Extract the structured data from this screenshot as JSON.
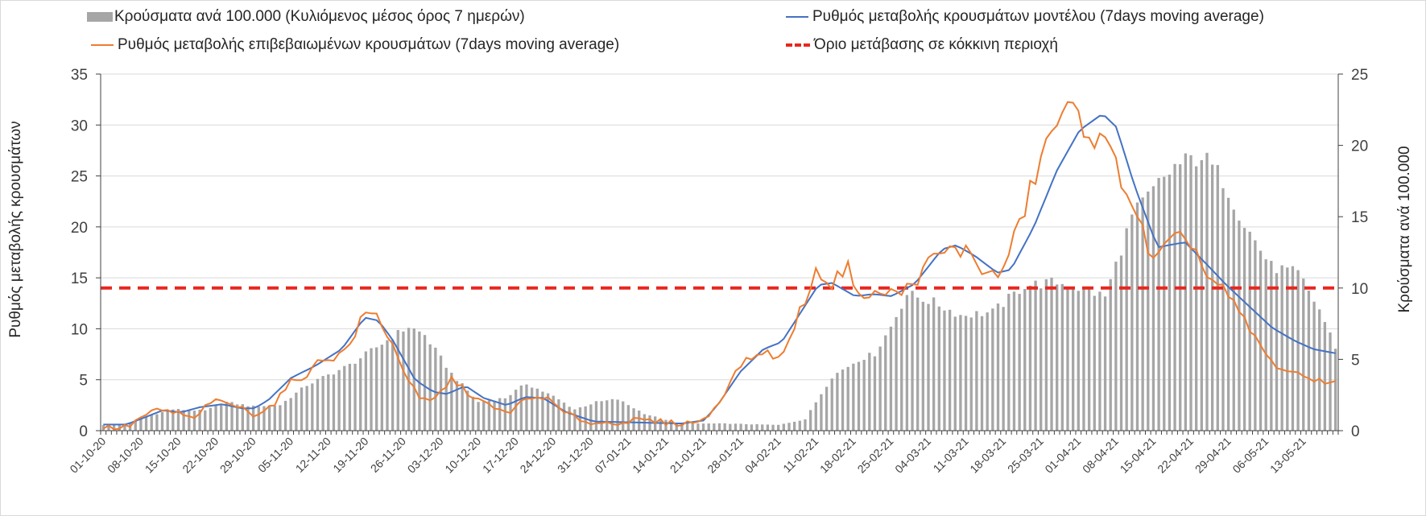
{
  "chart_data": {
    "type": "bar+line",
    "title": "",
    "legend": {
      "bars": "Κρούσματα ανά 100.000 (Κυλιόμενος μέσος όρος 7 ημερών)",
      "model": "Ρυθμός μεταβολής κρουσμάτων μοντέλου (7days moving average)",
      "confirmed": "Ρυθμός μεταβολής επιβεβαιωμένων κρουσμάτων (7days moving average)",
      "threshold": "Όριο μετάβασης σε κόκκινη περιοχή"
    },
    "ylabel_left": "Ρυθμός μεταβολής κρουσμάτων",
    "ylabel_right": "Κρούσματα ανά 100.000",
    "ylim_left": [
      0,
      35
    ],
    "yticks_left": [
      "0",
      "5",
      "10",
      "15",
      "20",
      "25",
      "30",
      "35"
    ],
    "ylim_right": [
      0,
      25
    ],
    "yticks_right": [
      "0",
      "5",
      "10",
      "15",
      "20",
      "25"
    ],
    "threshold_value": 14,
    "start_date": "2020-10-01",
    "days": 231,
    "xtick_labels": [
      "01-10-20",
      "08-10-20",
      "15-10-20",
      "22-10-20",
      "29-10-20",
      "05-11-20",
      "12-11-20",
      "19-11-20",
      "26-11-20",
      "03-12-20",
      "10-12-20",
      "17-12-20",
      "24-12-20",
      "31-12-20",
      "07-01-21",
      "14-01-21",
      "21-01-21",
      "28-01-21",
      "04-02-21",
      "11-02-21",
      "18-02-21",
      "25-02-21",
      "04-03-21",
      "11-03-21",
      "18-03-21",
      "25-03-21",
      "01-04-21",
      "08-04-21",
      "15-04-21",
      "22-04-21",
      "29-04-21",
      "06-05-21",
      "13-05-21"
    ],
    "cases_per_100k_keypoints": [
      [
        0,
        0.4
      ],
      [
        5,
        0.5
      ],
      [
        9,
        1.1
      ],
      [
        13,
        1.5
      ],
      [
        19,
        1.4
      ],
      [
        23,
        2.0
      ],
      [
        28,
        1.7
      ],
      [
        33,
        1.8
      ],
      [
        38,
        3.2
      ],
      [
        46,
        4.6
      ],
      [
        54,
        6.6
      ],
      [
        57,
        7.3
      ],
      [
        60,
        6.7
      ],
      [
        65,
        4.0
      ],
      [
        70,
        2.0
      ],
      [
        75,
        2.3
      ],
      [
        79,
        3.3
      ],
      [
        84,
        2.4
      ],
      [
        88,
        1.5
      ],
      [
        92,
        2.0
      ],
      [
        96,
        2.2
      ],
      [
        101,
        1.2
      ],
      [
        107,
        0.5
      ],
      [
        116,
        0.5
      ],
      [
        126,
        0.4
      ],
      [
        131,
        0.8
      ],
      [
        136,
        3.8
      ],
      [
        141,
        5.0
      ],
      [
        144,
        5.4
      ],
      [
        147,
        7.3
      ],
      [
        150,
        9.6
      ],
      [
        155,
        9.0
      ],
      [
        160,
        8.1
      ],
      [
        166,
        8.3
      ],
      [
        172,
        10.2
      ],
      [
        178,
        10.4
      ],
      [
        183,
        9.9
      ],
      [
        187,
        9.4
      ],
      [
        192,
        15.0
      ],
      [
        197,
        17.3
      ],
      [
        200,
        18.5
      ],
      [
        205,
        19.3
      ],
      [
        209,
        17.6
      ],
      [
        213,
        14.5
      ],
      [
        218,
        11.5
      ],
      [
        223,
        11.0
      ],
      [
        227,
        8.5
      ],
      [
        231,
        5.0
      ]
    ],
    "model_rate_keypoints": [
      [
        0,
        0.6
      ],
      [
        5,
        0.6
      ],
      [
        9,
        1.3
      ],
      [
        13,
        2.0
      ],
      [
        17,
        1.8
      ],
      [
        21,
        2.3
      ],
      [
        26,
        2.6
      ],
      [
        30,
        2.2
      ],
      [
        33,
        2.2
      ],
      [
        36,
        3.0
      ],
      [
        41,
        5.2
      ],
      [
        46,
        6.3
      ],
      [
        52,
        8.0
      ],
      [
        57,
        11.1
      ],
      [
        60,
        10.8
      ],
      [
        63,
        9.0
      ],
      [
        68,
        5.0
      ],
      [
        72,
        3.8
      ],
      [
        75,
        3.6
      ],
      [
        79,
        4.4
      ],
      [
        83,
        3.2
      ],
      [
        88,
        2.5
      ],
      [
        92,
        3.3
      ],
      [
        96,
        3.2
      ],
      [
        101,
        1.8
      ],
      [
        107,
        0.9
      ],
      [
        117,
        0.8
      ],
      [
        126,
        0.7
      ],
      [
        131,
        1.0
      ],
      [
        134,
        2.5
      ],
      [
        139,
        5.8
      ],
      [
        144,
        8.0
      ],
      [
        148,
        8.7
      ],
      [
        152,
        11.5
      ],
      [
        156,
        14.3
      ],
      [
        159,
        14.5
      ],
      [
        164,
        13.2
      ],
      [
        168,
        13.4
      ],
      [
        172,
        13.2
      ],
      [
        177,
        14.4
      ],
      [
        183,
        17.8
      ],
      [
        186,
        18.2
      ],
      [
        190,
        17.2
      ],
      [
        195,
        15.5
      ],
      [
        198,
        15.8
      ],
      [
        203,
        20.0
      ],
      [
        208,
        25.5
      ],
      [
        213,
        29.5
      ],
      [
        218,
        31.1
      ],
      [
        221,
        29.8
      ],
      [
        225,
        24.0
      ],
      [
        230,
        18.0
      ],
      [
        236,
        18.5
      ],
      [
        241,
        16.2
      ],
      [
        245,
        14.3
      ],
      [
        250,
        12.2
      ],
      [
        255,
        10.1
      ],
      [
        260,
        8.8
      ],
      [
        264,
        8.0
      ],
      [
        270,
        7.5
      ]
    ],
    "confirmed_rate_keypoints": [
      [
        0,
        0.3
      ],
      [
        5,
        0.3
      ],
      [
        9,
        1.5
      ],
      [
        12,
        2.0
      ],
      [
        17,
        1.7
      ],
      [
        19,
        1.1
      ],
      [
        21,
        1.5
      ],
      [
        23,
        2.9
      ],
      [
        28,
        2.6
      ],
      [
        33,
        1.6
      ],
      [
        37,
        2.5
      ],
      [
        41,
        4.8
      ],
      [
        45,
        5.6
      ],
      [
        47,
        7.0
      ],
      [
        51,
        7.2
      ],
      [
        54,
        8.6
      ],
      [
        57,
        11.6
      ],
      [
        60,
        11.2
      ],
      [
        63,
        8.5
      ],
      [
        66,
        5.5
      ],
      [
        69,
        3.0
      ],
      [
        72,
        2.9
      ],
      [
        76,
        5.1
      ],
      [
        79,
        3.9
      ],
      [
        82,
        3.0
      ],
      [
        85,
        2.2
      ],
      [
        88,
        1.7
      ],
      [
        92,
        3.0
      ],
      [
        96,
        3.4
      ],
      [
        101,
        1.6
      ],
      [
        107,
        0.7
      ],
      [
        117,
        1.0
      ],
      [
        126,
        0.7
      ],
      [
        131,
        1.0
      ],
      [
        134,
        2.6
      ],
      [
        139,
        6.5
      ],
      [
        144,
        7.8
      ],
      [
        148,
        7.0
      ],
      [
        152,
        11.8
      ],
      [
        156,
        15.8
      ],
      [
        159,
        14.3
      ],
      [
        162,
        16.3
      ],
      [
        166,
        12.9
      ],
      [
        170,
        13.6
      ],
      [
        174,
        13.5
      ],
      [
        177,
        14.6
      ],
      [
        181,
        17.0
      ],
      [
        185,
        17.7
      ],
      [
        189,
        17.6
      ],
      [
        193,
        15.1
      ],
      [
        196,
        15.5
      ],
      [
        200,
        20.4
      ],
      [
        204,
        26.0
      ],
      [
        208,
        30.5
      ],
      [
        212,
        31.4
      ],
      [
        215,
        29.5
      ],
      [
        220,
        27.0
      ],
      [
        224,
        23.0
      ],
      [
        229,
        16.5
      ],
      [
        233,
        18.5
      ],
      [
        237,
        18.9
      ],
      [
        241,
        15.0
      ],
      [
        245,
        13.5
      ],
      [
        250,
        10.0
      ],
      [
        255,
        6.6
      ],
      [
        260,
        5.5
      ],
      [
        265,
        5.0
      ],
      [
        270,
        4.5
      ]
    ]
  }
}
